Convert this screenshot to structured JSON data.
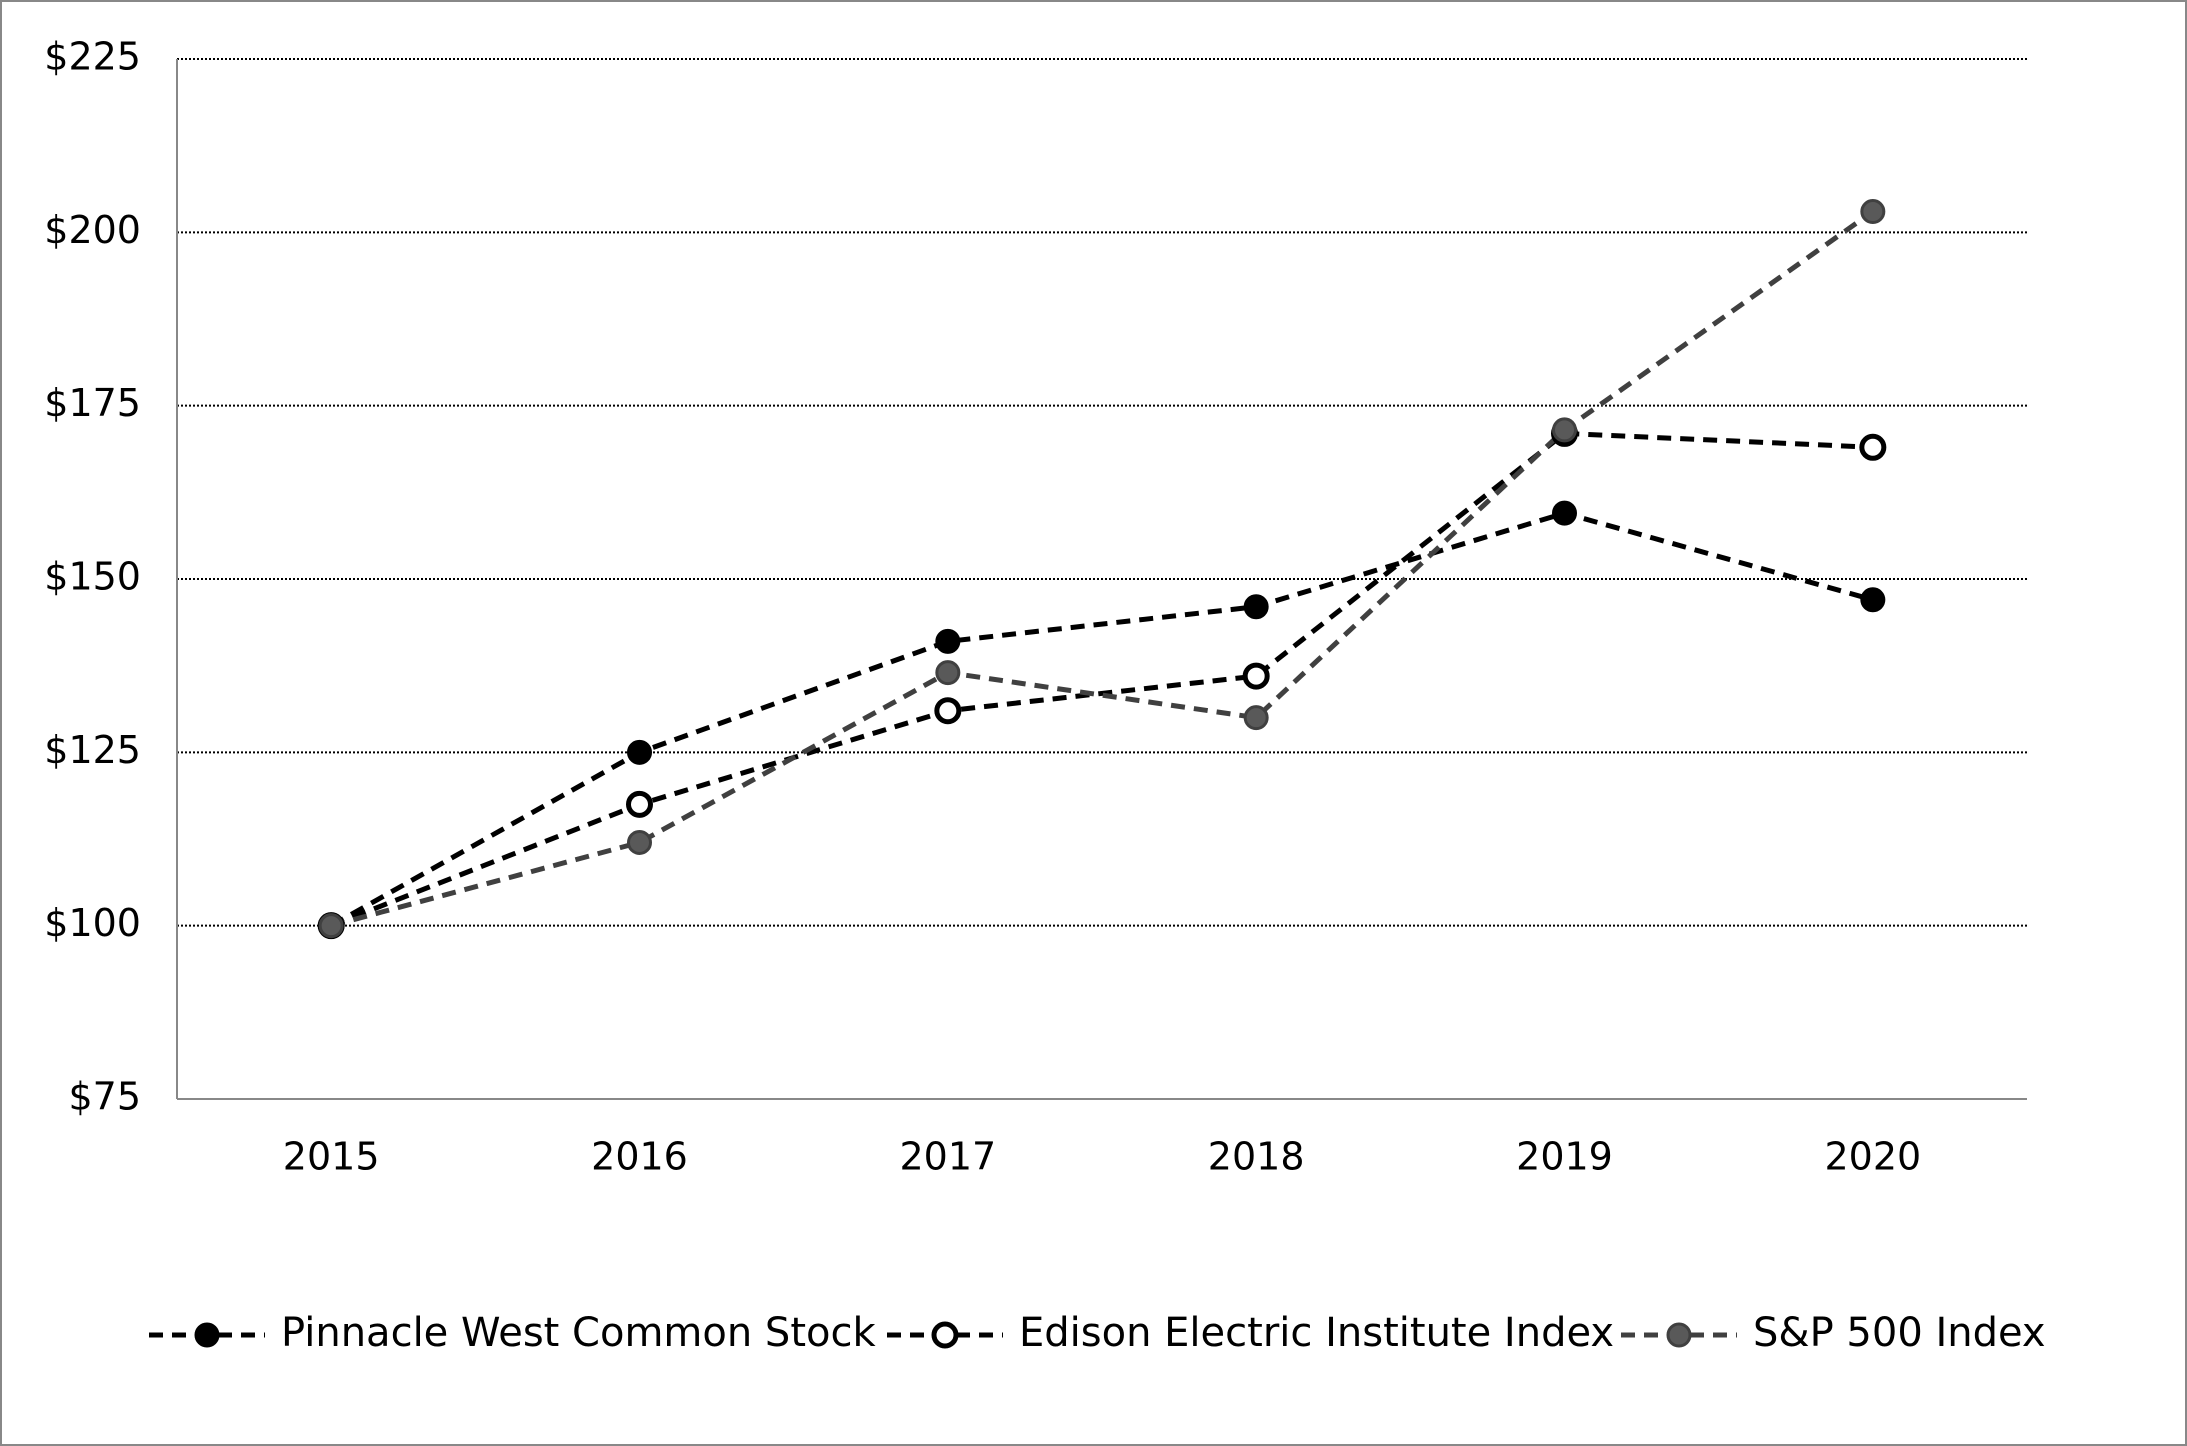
{
  "chart_data": {
    "type": "line",
    "categories": [
      "2015",
      "2016",
      "2017",
      "2018",
      "2019",
      "2020"
    ],
    "series": [
      {
        "name": "Pinnacle West Common Stock",
        "color": "#000000",
        "marker_fill": "#000000",
        "values": [
          100,
          125,
          141,
          146,
          159.5,
          147
        ]
      },
      {
        "name": "Edison Electric Institute Index",
        "color": "#000000",
        "marker_fill": "#ffffff",
        "values": [
          100,
          117.5,
          131,
          136,
          171,
          169
        ]
      },
      {
        "name": "S&P 500 Index",
        "color": "#404040",
        "marker_fill": "#595959",
        "values": [
          100,
          112,
          136.5,
          130,
          171.5,
          203
        ]
      }
    ],
    "ylim": [
      75,
      225
    ],
    "yticks": [
      {
        "value": 75,
        "label": "$75"
      },
      {
        "value": 100,
        "label": "$100"
      },
      {
        "value": 125,
        "label": "$125"
      },
      {
        "value": 150,
        "label": "$150"
      },
      {
        "value": 175,
        "label": "$175"
      },
      {
        "value": 200,
        "label": "$200"
      },
      {
        "value": 225,
        "label": "$225"
      }
    ],
    "grid": true,
    "legend": "bottom"
  }
}
